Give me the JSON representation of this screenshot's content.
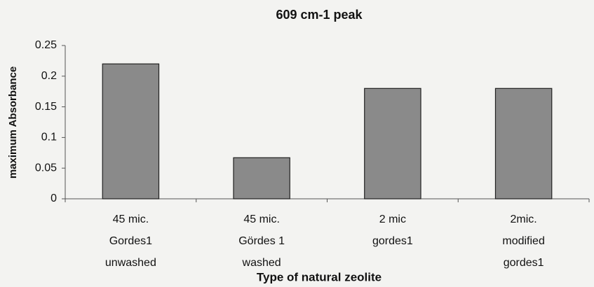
{
  "chart_data": {
    "type": "bar",
    "title": "609 cm-1 peak",
    "x_label": "Type of natural zeolite",
    "y_label": "maximum Absorbance",
    "categories": [
      "45 mic.\nGordes1\nunwashed",
      "45 mic.\nGördes 1\nwashed",
      "2 mic\ngordes1",
      "2mic.\nmodified\ngordes1"
    ],
    "values": [
      0.22,
      0.067,
      0.18,
      0.18
    ],
    "color": "#8a8a8a",
    "ylim": [
      0,
      0.25
    ],
    "yticks": [
      0,
      0.05,
      0.1,
      0.15,
      0.2,
      0.25
    ],
    "grid": false
  }
}
